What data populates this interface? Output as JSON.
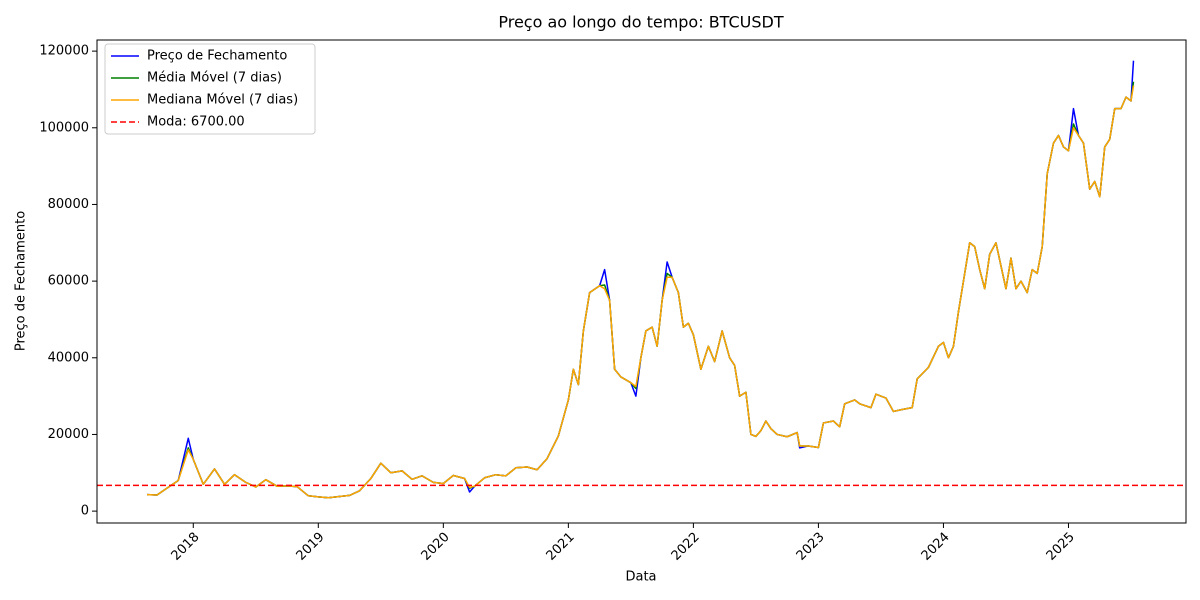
{
  "chart_data": {
    "type": "line",
    "title": "Preço ao longo do tempo: BTCUSDT",
    "x_label": "Data",
    "y_label": "Preço de Fechamento",
    "x": [
      2017.63,
      2017.71,
      2017.79,
      2017.88,
      2017.96,
      2018.0,
      2018.08,
      2018.17,
      2018.25,
      2018.33,
      2018.42,
      2018.5,
      2018.58,
      2018.67,
      2018.75,
      2018.83,
      2018.92,
      2019.0,
      2019.08,
      2019.17,
      2019.25,
      2019.33,
      2019.42,
      2019.5,
      2019.58,
      2019.67,
      2019.75,
      2019.83,
      2019.92,
      2020.0,
      2020.08,
      2020.17,
      2020.21,
      2020.25,
      2020.33,
      2020.42,
      2020.5,
      2020.58,
      2020.67,
      2020.75,
      2020.83,
      2020.92,
      2021.0,
      2021.04,
      2021.08,
      2021.12,
      2021.17,
      2021.25,
      2021.29,
      2021.33,
      2021.37,
      2021.42,
      2021.5,
      2021.54,
      2021.58,
      2021.62,
      2021.67,
      2021.71,
      2021.75,
      2021.79,
      2021.83,
      2021.88,
      2021.92,
      2021.96,
      2022.0,
      2022.06,
      2022.12,
      2022.17,
      2022.23,
      2022.29,
      2022.33,
      2022.37,
      2022.42,
      2022.46,
      2022.5,
      2022.54,
      2022.58,
      2022.62,
      2022.67,
      2022.75,
      2022.83,
      2022.85,
      2022.92,
      2023.0,
      2023.04,
      2023.12,
      2023.17,
      2023.21,
      2023.29,
      2023.33,
      2023.42,
      2023.46,
      2023.54,
      2023.6,
      2023.67,
      2023.75,
      2023.79,
      2023.88,
      2023.96,
      2024.0,
      2024.04,
      2024.08,
      2024.12,
      2024.17,
      2024.21,
      2024.25,
      2024.29,
      2024.33,
      2024.37,
      2024.42,
      2024.46,
      2024.5,
      2024.54,
      2024.58,
      2024.62,
      2024.67,
      2024.71,
      2024.75,
      2024.79,
      2024.83,
      2024.88,
      2024.92,
      2024.96,
      2025.0,
      2025.04,
      2025.08,
      2025.12,
      2025.17,
      2025.21,
      2025.25,
      2025.29,
      2025.33,
      2025.37,
      2025.42,
      2025.46,
      2025.5,
      2025.52
    ],
    "series": [
      {
        "name": "Preço de Fechamento",
        "color": "#0000ff",
        "values": [
          4300,
          4200,
          6000,
          8000,
          19000,
          13500,
          7000,
          11000,
          7000,
          9500,
          7500,
          6300,
          8200,
          6500,
          6600,
          6400,
          4000,
          3700,
          3500,
          3800,
          4100,
          5300,
          8500,
          12500,
          10000,
          10500,
          8300,
          9200,
          7500,
          7200,
          9300,
          8500,
          5000,
          6500,
          8700,
          9500,
          9200,
          11300,
          11500,
          10800,
          13700,
          19600,
          29000,
          37000,
          33000,
          47000,
          57000,
          58800,
          63000,
          55000,
          37000,
          35000,
          33500,
          30000,
          40000,
          47000,
          48000,
          43000,
          55000,
          65000,
          61000,
          57000,
          48000,
          49000,
          46000,
          37000,
          43000,
          39000,
          47000,
          40000,
          38000,
          30000,
          31000,
          20000,
          19500,
          21000,
          23500,
          21500,
          20000,
          19400,
          20500,
          16500,
          17000,
          16600,
          23000,
          23500,
          22000,
          28000,
          29000,
          28000,
          27000,
          30500,
          29500,
          26000,
          26500,
          27000,
          34500,
          37500,
          43000,
          44000,
          40000,
          43000,
          52000,
          62000,
          70000,
          69000,
          63000,
          58000,
          67000,
          70000,
          64000,
          58000,
          66000,
          58000,
          60000,
          57000,
          63000,
          62000,
          69000,
          88000,
          96000,
          98000,
          95000,
          94000,
          105000,
          98000,
          96000,
          84000,
          86000,
          82000,
          95000,
          97000,
          105000,
          105000,
          108000,
          107000,
          117500
        ]
      },
      {
        "name": "Média Móvel (7 dias)",
        "color": "#008000",
        "values": [
          4300,
          4200,
          6000,
          8000,
          16500,
          13500,
          7000,
          11000,
          7000,
          9500,
          7500,
          6300,
          8200,
          6500,
          6600,
          6400,
          4000,
          3700,
          3500,
          3800,
          4100,
          5300,
          8500,
          12500,
          10000,
          10500,
          8300,
          9200,
          7500,
          7200,
          9300,
          8500,
          6000,
          6500,
          8700,
          9500,
          9200,
          11300,
          11500,
          10800,
          13700,
          19600,
          29000,
          37000,
          33000,
          47000,
          57000,
          58800,
          59000,
          55000,
          37000,
          35000,
          33500,
          32000,
          40000,
          47000,
          48000,
          43000,
          55000,
          62000,
          61000,
          57000,
          48000,
          49000,
          46000,
          37000,
          43000,
          39000,
          47000,
          40000,
          38000,
          30000,
          31000,
          20000,
          19500,
          21000,
          23500,
          21500,
          20000,
          19400,
          20500,
          17000,
          17000,
          16600,
          23000,
          23500,
          22000,
          28000,
          29000,
          28000,
          27000,
          30500,
          29500,
          26000,
          26500,
          27000,
          34500,
          37500,
          43000,
          44000,
          40000,
          43000,
          52000,
          62000,
          70000,
          69000,
          63000,
          58000,
          67000,
          70000,
          64000,
          58000,
          66000,
          58000,
          60000,
          57000,
          63000,
          62000,
          69000,
          88000,
          96000,
          98000,
          95000,
          94000,
          101000,
          98000,
          96000,
          84000,
          86000,
          82000,
          95000,
          97000,
          105000,
          105000,
          108000,
          107000,
          112000
        ]
      },
      {
        "name": "Mediana Móvel (7 dias)",
        "color": "#ffa500",
        "values": [
          4300,
          4200,
          6000,
          8000,
          16000,
          13500,
          7000,
          11000,
          7000,
          9500,
          7500,
          6300,
          8200,
          6500,
          6600,
          6400,
          4000,
          3700,
          3500,
          3800,
          4100,
          5300,
          8500,
          12500,
          10000,
          10500,
          8300,
          9200,
          7500,
          7200,
          9300,
          8500,
          6200,
          6500,
          8700,
          9500,
          9200,
          11300,
          11500,
          10800,
          13700,
          19600,
          29000,
          37000,
          33000,
          47000,
          57000,
          58800,
          58000,
          55000,
          37000,
          35000,
          33500,
          32500,
          40000,
          47000,
          48000,
          43000,
          55000,
          61000,
          61000,
          57000,
          48000,
          49000,
          46000,
          37000,
          43000,
          39000,
          47000,
          40000,
          38000,
          30000,
          31000,
          20000,
          19500,
          21000,
          23500,
          21500,
          20000,
          19400,
          20500,
          17000,
          17000,
          16600,
          23000,
          23500,
          22000,
          28000,
          29000,
          28000,
          27000,
          30500,
          29500,
          26000,
          26500,
          27000,
          34500,
          37500,
          43000,
          44000,
          40000,
          43000,
          52000,
          62000,
          70000,
          69000,
          63000,
          58000,
          67000,
          70000,
          64000,
          58000,
          66000,
          58000,
          60000,
          57000,
          63000,
          62000,
          69000,
          88000,
          96000,
          98000,
          95000,
          94000,
          100000,
          98000,
          96000,
          84000,
          86000,
          82000,
          95000,
          97000,
          105000,
          105000,
          108000,
          107000,
          111000
        ]
      }
    ],
    "reference_line": {
      "name": "Moda: 6700.00",
      "value": 6700,
      "color": "#ff0000"
    },
    "xlim": [
      2017.23,
      2025.94
    ],
    "xticks": [
      2018,
      2019,
      2020,
      2021,
      2022,
      2023,
      2024,
      2025
    ],
    "ylim": [
      -3100,
      122900
    ],
    "yticks": [
      0,
      20000,
      40000,
      60000,
      80000,
      100000,
      120000
    ],
    "grid": false,
    "legend": "upper left"
  }
}
